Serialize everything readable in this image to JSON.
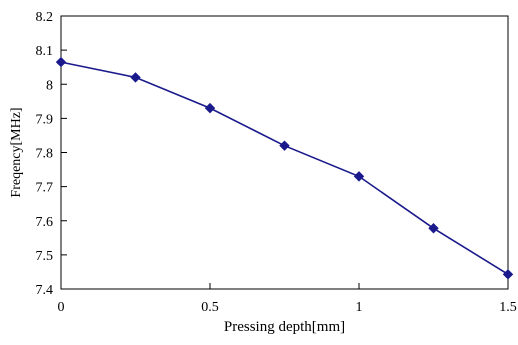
{
  "chart_data": {
    "type": "line",
    "title": "",
    "xlabel": "Pressing depth[mm]",
    "ylabel": "Freqency[MHz]",
    "xlim": [
      0,
      1.5
    ],
    "ylim": [
      7.4,
      8.2
    ],
    "x_ticks": [
      0,
      0.5,
      1,
      1.5
    ],
    "x_tick_labels": [
      "0",
      "0.5",
      "1",
      "1.5"
    ],
    "y_ticks": [
      7.4,
      7.5,
      7.6,
      7.7,
      7.8,
      7.9,
      8.0,
      8.1,
      8.2
    ],
    "y_tick_labels": [
      "7.4",
      "7.5",
      "7.6",
      "7.7",
      "7.8",
      "7.9",
      "8",
      "8.1",
      "8.2"
    ],
    "grid": false,
    "legend": "none",
    "series": [
      {
        "color": "#1a1a8c",
        "marker": "diamond",
        "x": [
          0,
          0.25,
          0.5,
          0.75,
          1.0,
          1.25,
          1.5
        ],
        "y": [
          8.065,
          8.02,
          7.93,
          7.82,
          7.73,
          7.578,
          7.443
        ]
      }
    ]
  }
}
